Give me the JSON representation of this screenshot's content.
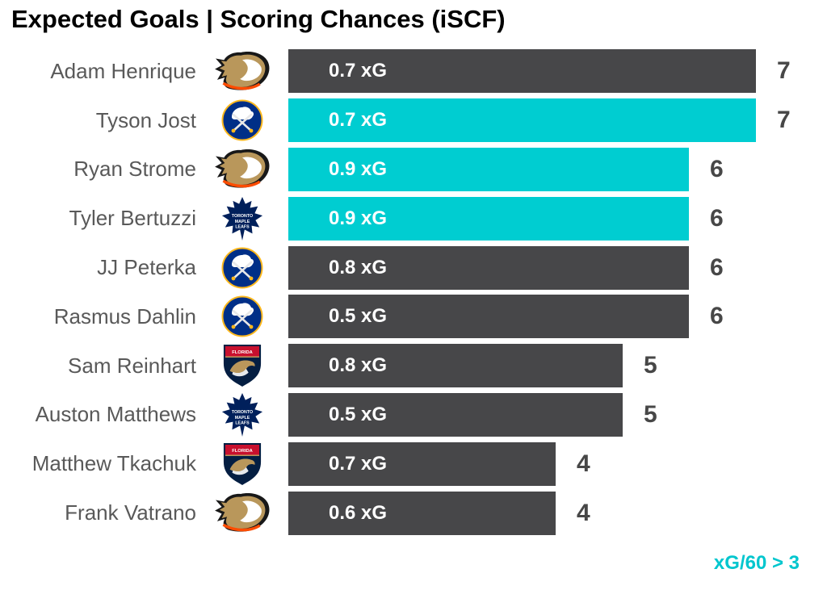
{
  "title": "Expected Goals | Scoring Chances (iSCF)",
  "annotation": "xG/60 > 3",
  "colors": {
    "bar_default": "#474749",
    "bar_highlight": "#00cdd1",
    "xg_label_text": "#ffffff",
    "name_text": "#595959",
    "count_text": "#474747",
    "title_text": "#000000",
    "annotation_text": "#00c6ce"
  },
  "chart_data": {
    "type": "bar",
    "orientation": "horizontal",
    "title": "Expected Goals | Scoring Chances (iSCF)",
    "annotation": "xG/60 > 3",
    "annotation_position": "bottom-right",
    "bar_length_metric": "iscf",
    "bar_inner_label_metric": "xg",
    "xlim": [
      0,
      7
    ],
    "grid": false,
    "legend": false,
    "highlight_meaning": "player has xG/60 > 3",
    "players": [
      {
        "name": "Adam Henrique",
        "team": "Anaheim Ducks",
        "xg": 0.7,
        "xg_label": "0.7 xG",
        "iscf": 7,
        "highlight": false
      },
      {
        "name": "Tyson Jost",
        "team": "Buffalo Sabres",
        "xg": 0.7,
        "xg_label": "0.7 xG",
        "iscf": 7,
        "highlight": true
      },
      {
        "name": "Ryan Strome",
        "team": "Anaheim Ducks",
        "xg": 0.9,
        "xg_label": "0.9 xG",
        "iscf": 6,
        "highlight": true
      },
      {
        "name": "Tyler Bertuzzi",
        "team": "Toronto Maple Leafs",
        "xg": 0.9,
        "xg_label": "0.9 xG",
        "iscf": 6,
        "highlight": true
      },
      {
        "name": "JJ Peterka",
        "team": "Buffalo Sabres",
        "xg": 0.8,
        "xg_label": "0.8 xG",
        "iscf": 6,
        "highlight": false
      },
      {
        "name": "Rasmus Dahlin",
        "team": "Buffalo Sabres",
        "xg": 0.5,
        "xg_label": "0.5 xG",
        "iscf": 6,
        "highlight": false
      },
      {
        "name": "Sam Reinhart",
        "team": "Florida Panthers",
        "xg": 0.8,
        "xg_label": "0.8 xG",
        "iscf": 5,
        "highlight": false
      },
      {
        "name": "Auston Matthews",
        "team": "Toronto Maple Leafs",
        "xg": 0.5,
        "xg_label": "0.5 xG",
        "iscf": 5,
        "highlight": false
      },
      {
        "name": "Matthew Tkachuk",
        "team": "Florida Panthers",
        "xg": 0.7,
        "xg_label": "0.7 xG",
        "iscf": 4,
        "highlight": false
      },
      {
        "name": "Frank Vatrano",
        "team": "Anaheim Ducks",
        "xg": 0.6,
        "xg_label": "0.6 xG",
        "iscf": 4,
        "highlight": false
      }
    ]
  }
}
